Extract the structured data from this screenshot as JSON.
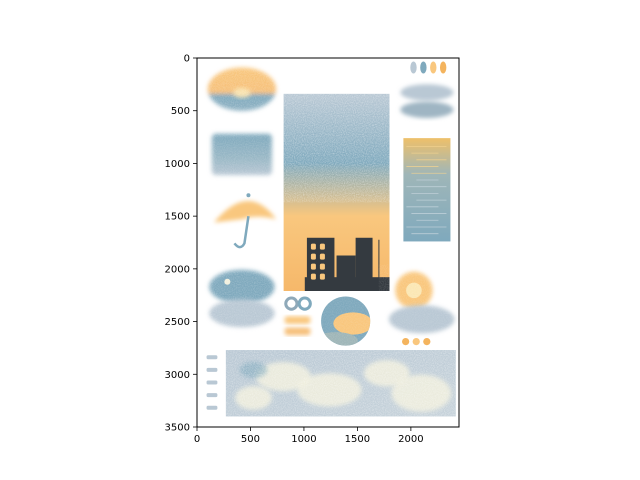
{
  "chart_data": {
    "type": "image",
    "title": "",
    "xlabel": "",
    "ylabel": "",
    "xlim": [
      0,
      2450
    ],
    "ylim": [
      3500,
      0
    ],
    "y_inverted": true,
    "xticks": [
      0,
      500,
      1000,
      1500,
      2000
    ],
    "yticks": [
      0,
      500,
      1000,
      1500,
      2000,
      2500,
      3000,
      3500
    ],
    "grid": false,
    "image_content": {
      "description_tags": [
        "watercolor",
        "clouds",
        "sunset",
        "city-silhouette",
        "umbrella",
        "sea",
        "sun",
        "moon",
        "palette"
      ],
      "palette": [
        "#f9c77e",
        "#7fa9bd",
        "#b9c8d4",
        "#f2f0de",
        "#343a40",
        "#eec06a"
      ],
      "regions": [
        {
          "name": "sunset-cloud-patch",
          "x": [
            80,
            760
          ],
          "y": [
            80,
            560
          ],
          "colors": [
            "#f9c77e",
            "#7fa9bd"
          ]
        },
        {
          "name": "blue-wash-patch",
          "x": [
            120,
            720
          ],
          "y": [
            700,
            1130
          ],
          "colors": [
            "#7fa9bd",
            "#b9c8d4"
          ]
        },
        {
          "name": "umbrella",
          "x": [
            140,
            760
          ],
          "y": [
            1230,
            1830
          ],
          "colors": [
            "#f9c77e",
            "#7fa9bd"
          ]
        },
        {
          "name": "moon-cloud-patch",
          "x": [
            80,
            760
          ],
          "y": [
            1990,
            2590
          ],
          "colors": [
            "#7fa9bd",
            "#b9c8d4"
          ]
        },
        {
          "name": "city-sunset-panel",
          "x": [
            810,
            1800
          ],
          "y": [
            340,
            2210
          ],
          "colors": [
            "#b9c8d4",
            "#7fa9bd",
            "#f9c77e",
            "#343a40"
          ]
        },
        {
          "name": "color-dots-top",
          "x": [
            1980,
            2350
          ],
          "y": [
            20,
            160
          ],
          "colors": [
            "#b9c8d4",
            "#7fa9bd",
            "#f9c77e",
            "#f4b45e"
          ]
        },
        {
          "name": "grey-cloud-strokes",
          "x": [
            1880,
            2420
          ],
          "y": [
            210,
            600
          ],
          "colors": [
            "#b9c8d4",
            "#8fa9b9"
          ]
        },
        {
          "name": "sea-sunlight-panel",
          "x": [
            1930,
            2370
          ],
          "y": [
            760,
            1740
          ],
          "colors": [
            "#eec06a",
            "#7fa9bd"
          ]
        },
        {
          "name": "sun-cloud-patch",
          "x": [
            1700,
            2430
          ],
          "y": [
            1960,
            2700
          ],
          "colors": [
            "#f9c77e",
            "#b9c8d4"
          ]
        },
        {
          "name": "ring-swatches",
          "x": [
            820,
            1070
          ],
          "y": [
            2260,
            2400
          ],
          "colors": [
            "#8fa9b9",
            "#7fa9bd"
          ]
        },
        {
          "name": "stroke-swatches",
          "x": [
            800,
            1080
          ],
          "y": [
            2430,
            2640
          ],
          "colors": [
            "#f9c77e"
          ]
        },
        {
          "name": "circle-sunset-landscape",
          "x": [
            1160,
            1620
          ],
          "y": [
            2260,
            2730
          ],
          "colors": [
            "#7fa9bd",
            "#f9c77e"
          ]
        },
        {
          "name": "orange-dots-bottom",
          "x": [
            1900,
            2200
          ],
          "y": [
            2640,
            2740
          ],
          "colors": [
            "#f4b45e",
            "#f9c77e"
          ]
        },
        {
          "name": "side-swatches",
          "x": [
            80,
            200
          ],
          "y": [
            2800,
            3400
          ],
          "colors": [
            "#b9c8d4"
          ]
        },
        {
          "name": "cloudy-sky-panel",
          "x": [
            270,
            2420
          ],
          "y": [
            2770,
            3400
          ],
          "colors": [
            "#b9c8d4",
            "#f2f0de",
            "#7fa9bd"
          ]
        }
      ]
    }
  }
}
